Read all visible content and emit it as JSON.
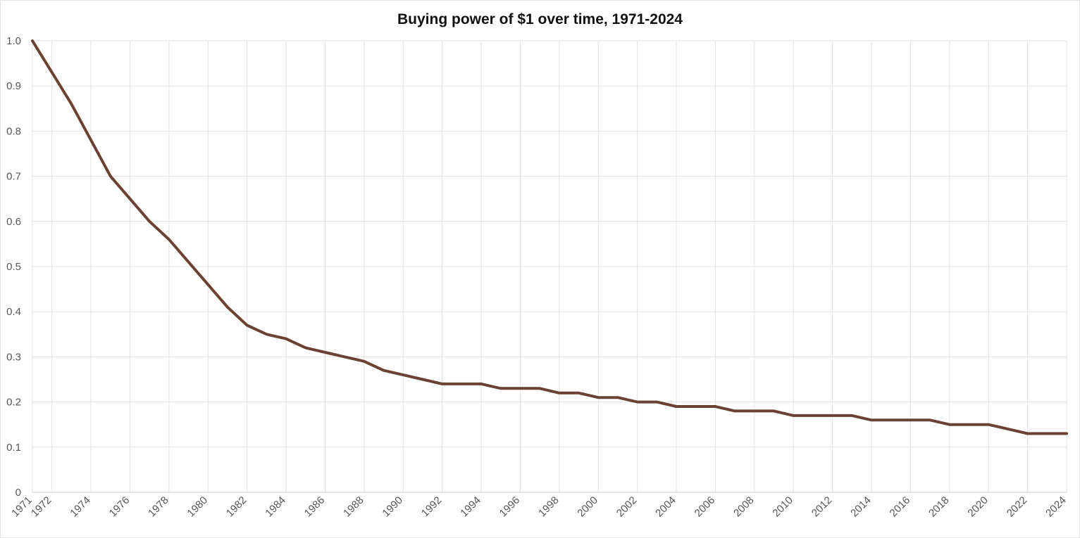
{
  "chart_data": {
    "type": "line",
    "title": "Buying power of $1 over time, 1971-2024",
    "xlabel": "",
    "ylabel": "",
    "xlim": [
      1971,
      2024
    ],
    "ylim": [
      0,
      1.0
    ],
    "y_ticks": [
      0,
      0.1,
      0.2,
      0.3,
      0.4,
      0.5,
      0.6,
      0.7,
      0.8,
      0.9,
      1.0
    ],
    "y_tick_labels": [
      "0",
      "0.1",
      "0.2",
      "0.3",
      "0.4",
      "0.5",
      "0.6",
      "0.7",
      "0.8",
      "0.9",
      "1.0"
    ],
    "x_ticks": [
      1971,
      1972,
      1974,
      1976,
      1978,
      1980,
      1982,
      1984,
      1986,
      1988,
      1990,
      1992,
      1994,
      1996,
      1998,
      2000,
      2002,
      2004,
      2006,
      2008,
      2010,
      2012,
      2014,
      2016,
      2018,
      2020,
      2022,
      2024
    ],
    "x_tick_labels": [
      "1971",
      "1972",
      "1974",
      "1976",
      "1978",
      "1980",
      "1982",
      "1984",
      "1986",
      "1988",
      "1990",
      "1992",
      "1994",
      "1996",
      "1998",
      "2000",
      "2002",
      "2004",
      "2006",
      "2008",
      "2010",
      "2012",
      "2014",
      "2016",
      "2018",
      "2020",
      "2022",
      "2024"
    ],
    "grid": true,
    "legend": "none",
    "series": [
      {
        "color": "#6b4232",
        "x": [
          1971,
          1972,
          1973,
          1974,
          1975,
          1976,
          1977,
          1978,
          1979,
          1980,
          1981,
          1982,
          1983,
          1984,
          1985,
          1986,
          1987,
          1988,
          1989,
          1990,
          1991,
          1992,
          1993,
          1994,
          1995,
          1996,
          1997,
          1998,
          1999,
          2000,
          2001,
          2002,
          2003,
          2004,
          2005,
          2006,
          2007,
          2008,
          2009,
          2010,
          2011,
          2012,
          2013,
          2014,
          2015,
          2016,
          2017,
          2018,
          2019,
          2020,
          2021,
          2022,
          2023,
          2024
        ],
        "y": [
          1.0,
          0.93,
          0.86,
          0.78,
          0.7,
          0.65,
          0.6,
          0.56,
          0.51,
          0.46,
          0.41,
          0.37,
          0.35,
          0.34,
          0.32,
          0.31,
          0.3,
          0.29,
          0.27,
          0.26,
          0.25,
          0.24,
          0.24,
          0.24,
          0.23,
          0.23,
          0.23,
          0.22,
          0.22,
          0.21,
          0.21,
          0.2,
          0.2,
          0.19,
          0.19,
          0.19,
          0.18,
          0.18,
          0.18,
          0.17,
          0.17,
          0.17,
          0.17,
          0.16,
          0.16,
          0.16,
          0.16,
          0.15,
          0.15,
          0.15,
          0.14,
          0.13,
          0.13,
          0.13
        ]
      }
    ]
  }
}
